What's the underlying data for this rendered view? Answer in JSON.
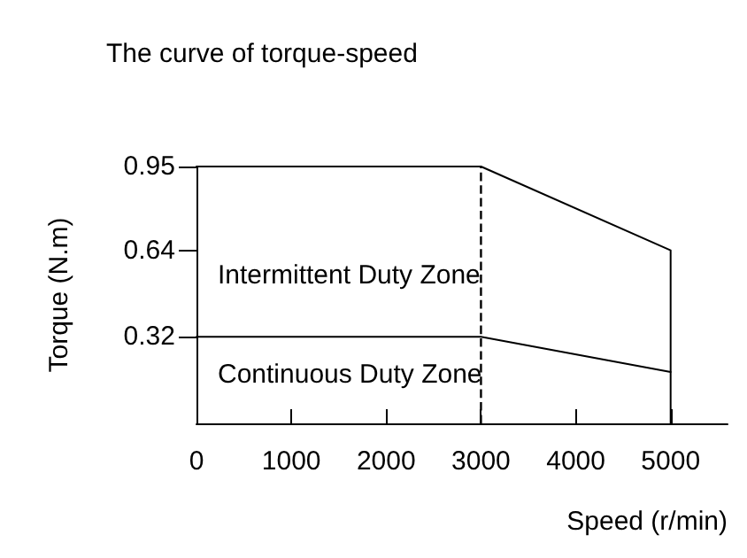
{
  "chart_data": {
    "type": "line",
    "title": "The curve of torque-speed",
    "xlabel": "Speed (r/min)",
    "ylabel": "Torque (N.m)",
    "series": [
      {
        "color": "#000000",
        "x": [
          0,
          3000,
          5000,
          5000
        ],
        "values": [
          0.95,
          0.95,
          0.64,
          0
        ]
      },
      {
        "color": "#000000",
        "x": [
          0,
          3000,
          5000
        ],
        "values": [
          0.32,
          0.32,
          0.19
        ]
      }
    ],
    "xlim": [
      0,
      5600
    ],
    "xticks": [
      0,
      1000,
      2000,
      3000,
      4000,
      5000
    ],
    "ylim": [
      0,
      0.95
    ],
    "yticks": [
      0.32,
      0.64,
      0.95
    ],
    "ref_lines": [
      {
        "axis": "x",
        "value": 3000,
        "line_style": "dashed",
        "color": "#000000"
      }
    ],
    "annotations": [
      "Intermittent Duty Zone",
      "Continuous Duty Zone"
    ],
    "grid": false,
    "marker": "none",
    "line_style": "solid"
  }
}
